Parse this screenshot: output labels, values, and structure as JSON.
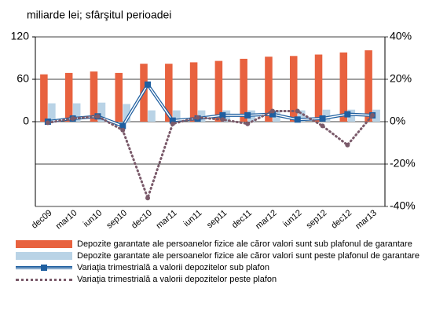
{
  "chart_data": {
    "type": "bar-line",
    "title": "miliarde lei; sfârşitul perioadei",
    "categories": [
      "dec09",
      "mar10",
      "iun10",
      "sep10",
      "dec10",
      "mar11",
      "iun11",
      "sep11",
      "dec11",
      "mar12",
      "iun12",
      "sep12",
      "dec12",
      "mar13"
    ],
    "series": [
      {
        "name": "Depozite garantate ale persoanelor fizice ale căror valori sunt sub plafonul de garantare",
        "color": "#e8623f",
        "kind": "bar",
        "values": [
          67,
          69,
          71,
          69,
          82,
          82,
          84,
          86,
          89,
          92,
          93,
          95,
          98,
          101
        ]
      },
      {
        "name": "Depozite garantate ale persoanelor fizice ale căror valori sunt peste plafonul de garantare",
        "color": "#b9d3e6",
        "kind": "bar",
        "values": [
          26,
          26,
          27,
          25,
          16,
          16,
          16,
          16,
          16,
          16,
          16,
          17,
          17,
          17
        ]
      },
      {
        "name": "Variaţia trimestrială a valorii depozitelor sub plafon",
        "color": "#1f5fa0",
        "kind": "line",
        "axis": "y2",
        "values": [
          0,
          1.5,
          2.5,
          -2,
          17.5,
          0.5,
          1.5,
          3,
          3,
          3.5,
          1,
          1.5,
          3.5,
          3
        ]
      },
      {
        "name": "Variaţia trimestrială a valorii depozitelor peste plafon",
        "color": "#7a5a6a",
        "kind": "dotted",
        "axis": "y2",
        "values": [
          -0.5,
          1.5,
          2.5,
          -4,
          -36,
          -1,
          2,
          1,
          -1,
          5,
          5,
          -2,
          -11,
          3
        ]
      }
    ],
    "ylim": [
      -120,
      120
    ],
    "yticks": [
      0,
      60,
      120
    ],
    "y2lim": [
      -40,
      40
    ],
    "y2ticks": [
      {
        "value": -40,
        "label": "-40%"
      },
      {
        "value": -20,
        "label": "-20%"
      },
      {
        "value": 0,
        "label": "0%"
      },
      {
        "value": 20,
        "label": "20%"
      },
      {
        "value": 40,
        "label": "40%"
      }
    ]
  }
}
